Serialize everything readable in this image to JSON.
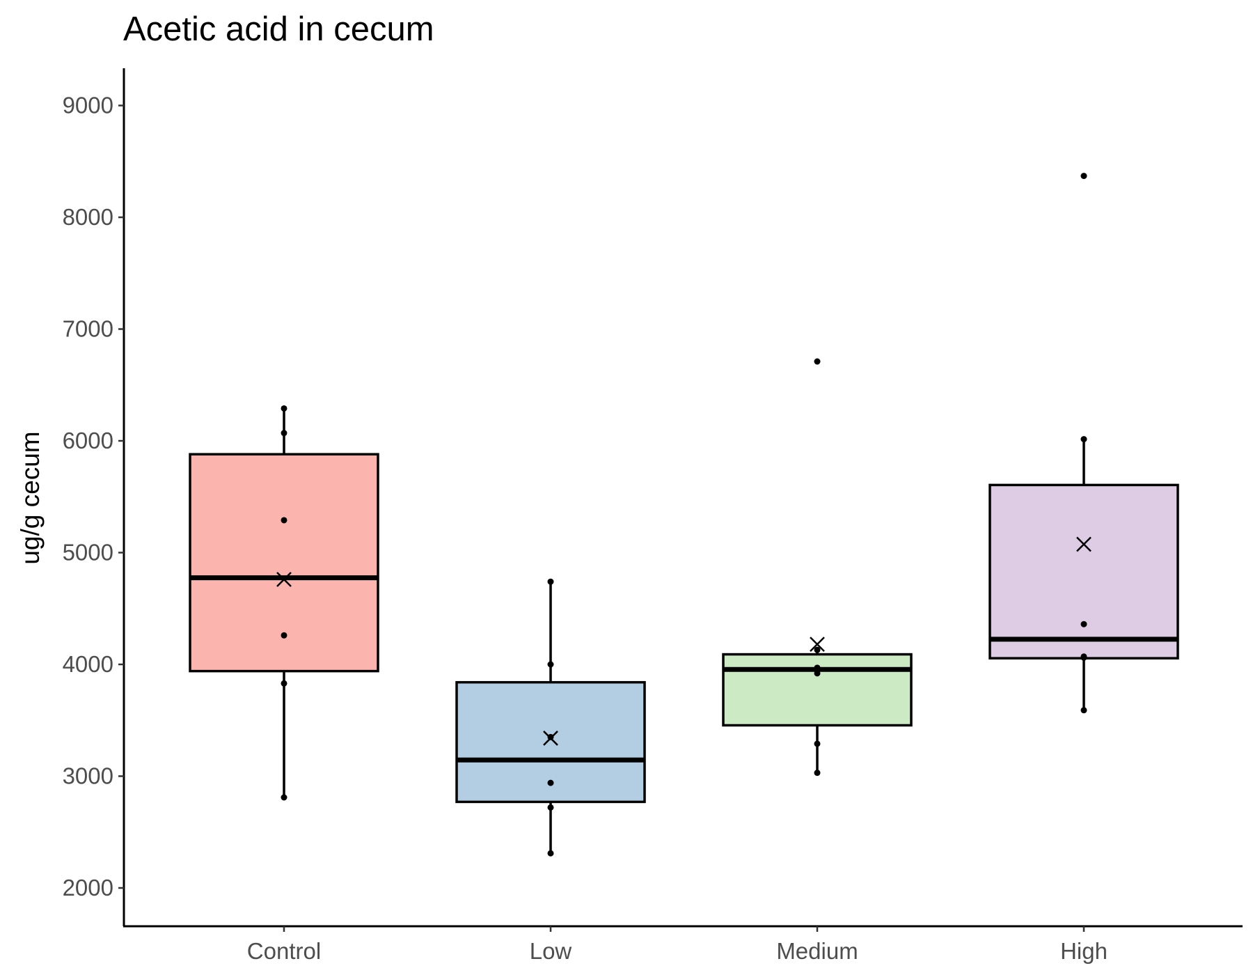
{
  "chart_data": {
    "type": "box",
    "title": "Acetic acid in cecum",
    "xlabel": "",
    "ylabel": "ug/g cecum",
    "ylim": [
      1660,
      9340
    ],
    "yticks": [
      2000,
      3000,
      4000,
      5000,
      6000,
      7000,
      8000,
      9000
    ],
    "grid": false,
    "legend": "none",
    "categories": [
      "Control",
      "Low",
      "Medium",
      "High"
    ],
    "colors": [
      "#FBB4AE",
      "#B3CDE3",
      "#CCEBC5",
      "#DECBE4"
    ],
    "boxes": [
      {
        "category": "Control",
        "q1": 3940,
        "median": 4775,
        "q3": 5880,
        "whisker_low": 2810,
        "whisker_high": 6290,
        "mean": 4760,
        "points": [
          2810,
          3830,
          4260,
          5290,
          6070,
          6290
        ],
        "outliers": []
      },
      {
        "category": "Low",
        "q1": 2770,
        "median": 3145,
        "q3": 3840,
        "whisker_low": 2310,
        "whisker_high": 4740,
        "mean": 3340,
        "points": [
          2310,
          2720,
          2940,
          3350,
          4000,
          4740
        ],
        "outliers": []
      },
      {
        "category": "Medium",
        "q1": 3455,
        "median": 3955,
        "q3": 4090,
        "whisker_low": 3030,
        "whisker_high": 4130,
        "mean": 4180,
        "points": [
          3030,
          3290,
          3920,
          3970,
          4130,
          6710
        ],
        "outliers": [
          6710
        ]
      },
      {
        "category": "High",
        "q1": 4055,
        "median": 4225,
        "q3": 5605,
        "whisker_low": 3590,
        "whisker_high": 6015,
        "mean": 5075,
        "points": [
          3590,
          4060,
          4070,
          4360,
          6015,
          8370
        ],
        "outliers": [
          8370
        ]
      }
    ]
  }
}
